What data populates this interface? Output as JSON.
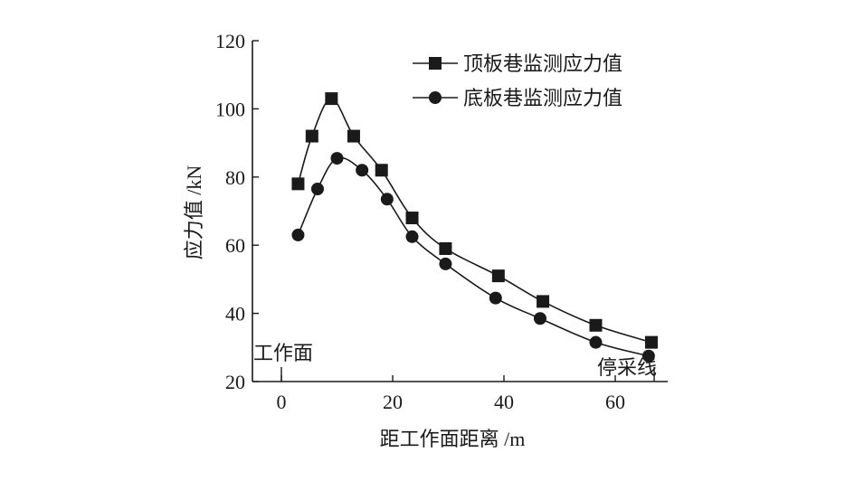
{
  "chart_data": {
    "type": "line",
    "xlabel": "距工作面距离 /m",
    "ylabel": "应力值 /kN",
    "xlim": [
      -5,
      70
    ],
    "ylim": [
      20,
      120
    ],
    "xticks": [
      0,
      20,
      40,
      60
    ],
    "yticks": [
      20,
      40,
      60,
      80,
      100,
      120
    ],
    "grid": false,
    "legend": "top-right",
    "series": [
      {
        "name": "顶板巷监测应力值",
        "marker": "square",
        "x": [
          3,
          5.5,
          9,
          13,
          18,
          23.5,
          29.5,
          39,
          47,
          56.5,
          66.5
        ],
        "values": [
          78,
          92,
          103,
          92,
          82,
          68,
          59,
          51,
          43.5,
          36.5,
          31.5
        ]
      },
      {
        "name": "底板巷监测应力值",
        "marker": "circle",
        "x": [
          3,
          6.5,
          10,
          14.5,
          19,
          23.5,
          29.5,
          38.5,
          46.5,
          56.5,
          66
        ],
        "values": [
          63,
          76.5,
          85.5,
          82,
          73.5,
          62.5,
          54.5,
          44.5,
          38.5,
          31.5,
          27.5
        ]
      }
    ],
    "annotations": [
      {
        "label": "工作面",
        "x": 0
      },
      {
        "label": "停采线",
        "x": 67
      }
    ]
  }
}
